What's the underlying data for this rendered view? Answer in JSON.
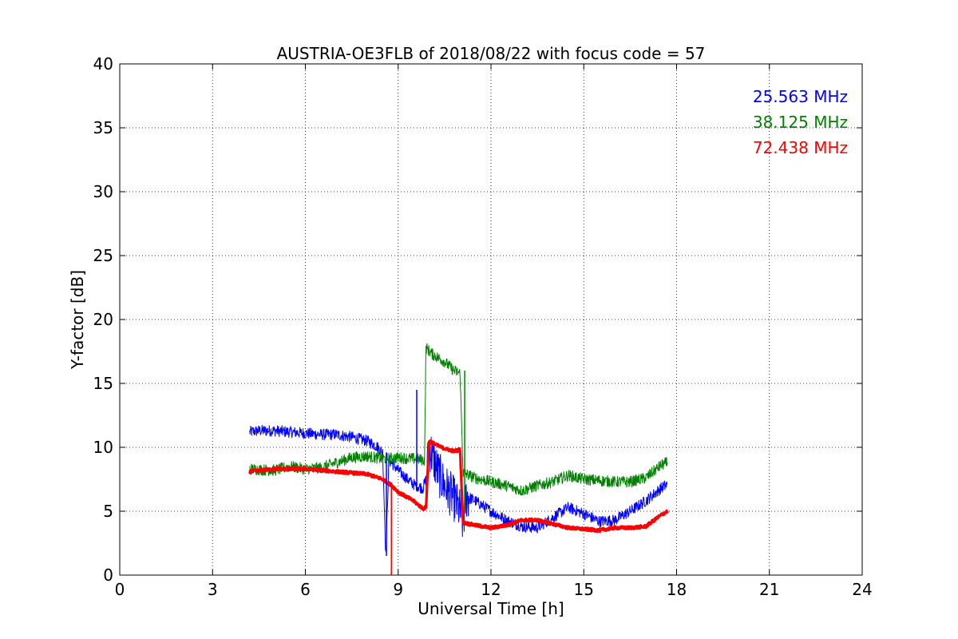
{
  "chart_data": {
    "type": "line",
    "title": "AUSTRIA-OE3FLB of 2018/08/22 with focus code = 57",
    "xlabel": "Universal Time [h]",
    "ylabel": "Y-factor [dB]",
    "xlim": [
      0,
      24
    ],
    "ylim": [
      0,
      40
    ],
    "xticks": [
      0,
      3,
      6,
      9,
      12,
      15,
      18,
      21,
      24
    ],
    "yticks": [
      0,
      5,
      10,
      15,
      20,
      25,
      30,
      35,
      40
    ],
    "grid": true,
    "legend_position": "top-right",
    "series": [
      {
        "name": "25.563 MHz",
        "color": "#0000ff",
        "x": [
          4.2,
          4.5,
          5.0,
          5.5,
          6.0,
          6.5,
          7.0,
          7.5,
          8.0,
          8.3,
          8.5,
          8.6,
          8.7,
          9.0,
          9.3,
          9.5,
          9.8,
          9.9,
          10.0,
          10.3,
          10.5,
          10.8,
          11.0,
          11.1,
          11.2,
          11.5,
          12.0,
          12.5,
          13.0,
          13.5,
          14.0,
          14.5,
          15.0,
          15.5,
          16.0,
          16.5,
          17.0,
          17.5,
          17.7
        ],
        "values": [
          11.2,
          11.3,
          11.3,
          11.2,
          11.1,
          11.0,
          11.0,
          10.8,
          10.5,
          10.1,
          9.6,
          1.5,
          9.0,
          8.2,
          7.5,
          7.1,
          6.8,
          7.5,
          10.0,
          8.0,
          7.0,
          6.0,
          5.0,
          4.0,
          6.2,
          5.8,
          5.0,
          4.3,
          3.8,
          3.7,
          4.5,
          5.3,
          4.8,
          4.2,
          4.3,
          5.0,
          5.8,
          6.8,
          7.1
        ]
      },
      {
        "name": "38.125 MHz",
        "color": "#008000",
        "x": [
          4.2,
          5.0,
          5.5,
          6.0,
          6.5,
          7.0,
          7.5,
          8.0,
          8.5,
          9.0,
          9.5,
          9.85,
          9.9,
          10.1,
          10.5,
          10.8,
          11.0,
          11.1,
          11.5,
          12.0,
          12.5,
          13.0,
          13.5,
          14.0,
          14.5,
          15.0,
          15.5,
          16.0,
          16.5,
          17.0,
          17.5,
          17.7
        ],
        "values": [
          8.3,
          8.2,
          8.5,
          8.3,
          8.4,
          8.8,
          9.2,
          9.3,
          9.1,
          9.2,
          9.1,
          9.0,
          17.8,
          17.3,
          16.7,
          16.0,
          15.8,
          8.0,
          7.6,
          7.3,
          7.0,
          6.6,
          7.0,
          7.3,
          7.8,
          7.5,
          7.4,
          7.3,
          7.3,
          7.6,
          8.6,
          8.8
        ]
      },
      {
        "name": "72.438 MHz",
        "color": "#ff0000",
        "x": [
          4.2,
          5.0,
          5.5,
          6.0,
          6.5,
          7.0,
          7.5,
          8.0,
          8.5,
          8.8,
          9.0,
          9.5,
          9.8,
          9.9,
          10.0,
          10.3,
          10.5,
          10.8,
          11.0,
          11.1,
          11.5,
          12.0,
          12.5,
          13.0,
          13.5,
          14.0,
          14.5,
          15.0,
          15.5,
          16.0,
          16.5,
          17.0,
          17.5,
          17.7
        ],
        "values": [
          8.1,
          8.3,
          8.3,
          8.3,
          8.2,
          8.1,
          8.0,
          7.9,
          7.5,
          7.0,
          6.5,
          5.8,
          5.2,
          5.3,
          10.5,
          10.1,
          9.9,
          9.7,
          9.8,
          4.1,
          3.9,
          3.7,
          3.9,
          4.3,
          4.3,
          4.0,
          3.7,
          3.6,
          3.5,
          3.7,
          3.7,
          3.8,
          4.7,
          5.0
        ]
      }
    ],
    "spikes": [
      {
        "color": "#0000ff",
        "x": 8.62,
        "from": 9.6,
        "to": 1.5
      },
      {
        "color": "#0000ff",
        "x": 9.6,
        "from": 7.0,
        "to": 14.5
      },
      {
        "color": "#ff0000",
        "x": 8.78,
        "from": 7.0,
        "to": 0.0
      },
      {
        "color": "#008000",
        "x": 11.15,
        "from": 16.0,
        "to": 5.0
      }
    ]
  }
}
